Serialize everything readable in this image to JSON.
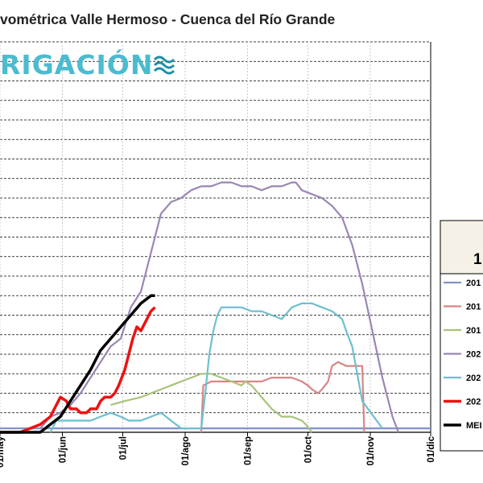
{
  "title": "vométrica Valle Hermoso - Cuenca del Río Grande",
  "logo": {
    "text": "RIGACIÓN",
    "wave_icon": "wave-icon"
  },
  "legend_header": "1",
  "chart_data": {
    "type": "line",
    "x_tick_labels": [
      "01/may",
      "01/jun",
      "01/jul",
      "01/ago",
      "01/sep",
      "01/oct",
      "01/nov",
      "01/dic"
    ],
    "x_range_days": [
      0,
      214
    ],
    "y_range": [
      0,
      100
    ],
    "grid": true,
    "series": [
      {
        "name": "201",
        "color": "#8193c7",
        "x": [
          0,
          25,
          50,
          70,
          100,
          130,
          150,
          160,
          170,
          180,
          190,
          200,
          214
        ],
        "y": [
          1,
          1,
          1,
          1,
          1,
          1,
          1,
          1,
          1,
          1,
          1,
          1,
          1
        ]
      },
      {
        "name": "201",
        "color": "#d88585",
        "x": [
          100,
          101,
          105,
          110,
          115,
          120,
          125,
          130,
          135,
          140,
          145,
          150,
          153,
          155,
          158,
          160,
          163,
          165,
          168,
          172,
          176,
          180,
          181
        ],
        "y": [
          0,
          12,
          13,
          13,
          13,
          13,
          13,
          13,
          14,
          14,
          14,
          13,
          12,
          11,
          10,
          11,
          13,
          17,
          18,
          17,
          17,
          17,
          0
        ]
      },
      {
        "name": "201",
        "color": "#a9c37a",
        "x": [
          55,
          62,
          70,
          75,
          80,
          85,
          90,
          95,
          100,
          105,
          110,
          115,
          120,
          122,
          125,
          130,
          135,
          140,
          145,
          150,
          152,
          155
        ],
        "y": [
          7,
          8,
          9,
          10,
          11,
          12,
          13,
          14,
          15,
          15,
          14,
          13,
          12,
          13,
          12,
          9,
          6,
          4,
          4,
          3,
          2,
          0
        ]
      },
      {
        "name": "202",
        "color": "#9a86b3",
        "x": [
          20,
          25,
          30,
          35,
          40,
          45,
          50,
          55,
          60,
          65,
          70,
          75,
          80,
          85,
          90,
          95,
          100,
          105,
          110,
          115,
          120,
          125,
          130,
          135,
          140,
          145,
          147,
          150,
          155,
          160,
          165,
          170,
          175,
          180,
          185,
          190,
          195,
          198
        ],
        "y": [
          1,
          4,
          5,
          7,
          10,
          14,
          18,
          22,
          24,
          32,
          36,
          46,
          56,
          59,
          60,
          62,
          63,
          63,
          64,
          64,
          63,
          63,
          62,
          63,
          63,
          64,
          64,
          62,
          61,
          60,
          58,
          55,
          48,
          38,
          26,
          14,
          4,
          0
        ]
      },
      {
        "name": "202",
        "color": "#6dbfcf",
        "x": [
          25,
          28,
          30,
          45,
          50,
          55,
          60,
          64,
          70,
          75,
          80,
          85,
          90,
          100,
          102,
          104,
          106,
          108,
          110,
          115,
          120,
          125,
          130,
          135,
          140,
          145,
          150,
          155,
          160,
          165,
          170,
          172,
          175,
          180,
          190
        ],
        "y": [
          0,
          3,
          3,
          3,
          4,
          5,
          4,
          3,
          3,
          4,
          5,
          3,
          1,
          1,
          10,
          20,
          26,
          30,
          32,
          32,
          32,
          31,
          31,
          30,
          29,
          32,
          33,
          33,
          32,
          31,
          29,
          26,
          22,
          8,
          1
        ]
      },
      {
        "name": "202",
        "color": "#ee1111",
        "x": [
          0,
          10,
          15,
          20,
          25,
          28,
          30,
          33,
          35,
          38,
          40,
          43,
          45,
          48,
          50,
          52,
          55,
          57,
          59,
          62,
          64,
          66,
          68,
          70,
          73,
          75,
          77
        ],
        "y": [
          0,
          0,
          1,
          2,
          4,
          7,
          9,
          8,
          6,
          6,
          5,
          5,
          6,
          6,
          8,
          9,
          9,
          10,
          12,
          16,
          20,
          24,
          27,
          26,
          29,
          31,
          32
        ]
      },
      {
        "name": "MEI",
        "color": "#000000",
        "x": [
          0,
          10,
          20,
          25,
          30,
          35,
          40,
          45,
          50,
          55,
          60,
          65,
          70,
          75,
          77
        ],
        "y": [
          0,
          0,
          0,
          2,
          4,
          8,
          12,
          16,
          21,
          24,
          27,
          30,
          33,
          35,
          35
        ]
      }
    ]
  }
}
